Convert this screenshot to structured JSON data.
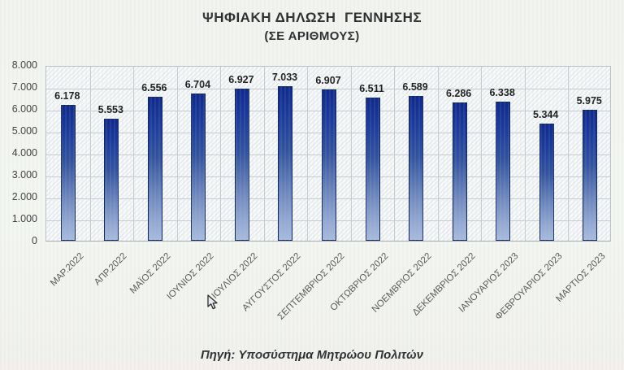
{
  "source_caption": "Πηγή: Υποσύστημα Μητρώου Πολιτών",
  "chart_data": {
    "type": "bar",
    "title": "ΨΗΦΙΑΚΗ ΔΗΛΩΣΗ  ΓΕΝΝΗΣΗΣ",
    "subtitle": "(ΣΕ ΑΡΙΘΜΟΥΣ)",
    "categories": [
      "ΜΑΡ.2022",
      "ΑΠΡ.2022",
      "ΜΑΪΟΣ 2022",
      "ΙΟΥΝΙΟΣ 2022",
      "ΙΟΥΛΙΟΣ 2022",
      "ΑΥΓΟΥΣΤΟΣ 2022",
      "ΣΕΠΤΕΜΒΡΙΟΣ 2022",
      "ΟΚΤΩΒΡΙΟΣ 2022",
      "ΝΟΕΜΒΡΙΟΣ 2022",
      "ΔΕΚΕΜΒΡΙΟΣ 2022",
      "ΙΑΝΟΥΑΡΙΟΣ 2023",
      "ΦΕΒΡΟΥΑΡΙΟΣ 2023",
      "ΜΑΡΤΙΟΣ 2023"
    ],
    "values": [
      6178,
      5553,
      6556,
      6704,
      6927,
      7033,
      6907,
      6511,
      6589,
      6286,
      6338,
      5344,
      5975
    ],
    "value_labels": [
      "6.178",
      "5.553",
      "6.556",
      "6.704",
      "6.927",
      "7.033",
      "6.907",
      "6.511",
      "6.589",
      "6.286",
      "6.338",
      "5.344",
      "5.975"
    ],
    "xlabel": "",
    "ylabel": "",
    "ylim": [
      0,
      8000
    ],
    "ytick_step": 1000,
    "ytick_labels": [
      "0",
      "1.000",
      "2.000",
      "3.000",
      "4.000",
      "5.000",
      "6.000",
      "7.000",
      "8.000"
    ],
    "grid": true,
    "legend": false,
    "bar_border_color": "#13255f",
    "bar_gradient_top": "#102a8c",
    "bar_gradient_bottom": "#a7badd",
    "gridline_color": "#c6ccd2",
    "plot_background": "hatched"
  }
}
